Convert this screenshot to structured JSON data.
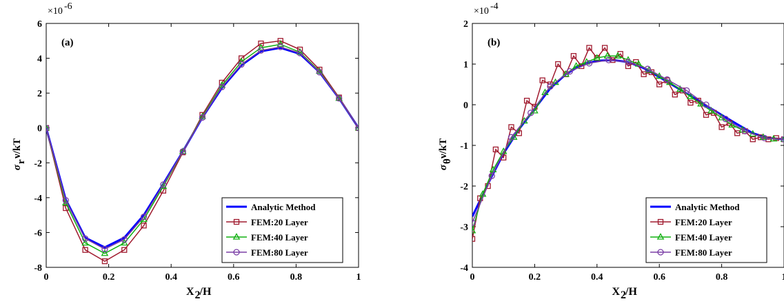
{
  "chart_data": [
    {
      "type": "line",
      "panel_label": "(a)",
      "exponent_base": "×10",
      "exponent_power": "-6",
      "xlabel_main": "X",
      "xlabel_sub": "2",
      "xlabel_rest": "/H",
      "ylabel_main": "σ",
      "ylabel_sub": "r",
      "ylabel_rest": "ν/kT",
      "xlim": [
        0,
        1
      ],
      "ylim": [
        -8,
        6
      ],
      "xticks": [
        0,
        0.2,
        0.4,
        0.6,
        0.8,
        1
      ],
      "xtick_labels": [
        "0",
        "0.2",
        "0.4",
        "0.6",
        "0.8",
        "1"
      ],
      "yticks": [
        -8,
        -6,
        -4,
        -2,
        0,
        2,
        4,
        6
      ],
      "ytick_labels": [
        "-8",
        "-6",
        "-4",
        "-2",
        "0",
        "2",
        "4",
        "6"
      ],
      "legend_position": "bottom-right",
      "series": [
        {
          "name": "Analytic Method",
          "color": "#0000ff",
          "marker": "none",
          "x": [
            0,
            0.0625,
            0.125,
            0.1875,
            0.25,
            0.3125,
            0.375,
            0.4375,
            0.5,
            0.5625,
            0.625,
            0.6875,
            0.75,
            0.8125,
            0.875,
            0.9375,
            1
          ],
          "y": [
            0,
            -4.1,
            -6.3,
            -6.85,
            -6.3,
            -5.0,
            -3.2,
            -1.35,
            0.6,
            2.3,
            3.6,
            4.4,
            4.6,
            4.25,
            3.2,
            1.7,
            0
          ]
        },
        {
          "name": "FEM:20 Layer",
          "color": "#a01a2e",
          "marker": "square",
          "x": [
            0,
            0.0625,
            0.125,
            0.1875,
            0.25,
            0.3125,
            0.375,
            0.4375,
            0.5,
            0.5625,
            0.625,
            0.6875,
            0.75,
            0.8125,
            0.875,
            0.9375,
            1
          ],
          "y": [
            0,
            -4.6,
            -7.0,
            -7.65,
            -7.0,
            -5.6,
            -3.6,
            -1.4,
            0.75,
            2.6,
            4.0,
            4.85,
            5.0,
            4.5,
            3.35,
            1.75,
            0
          ]
        },
        {
          "name": "FEM:40 Layer",
          "color": "#11b011",
          "marker": "triangle",
          "x": [
            0,
            0.0625,
            0.125,
            0.1875,
            0.25,
            0.3125,
            0.375,
            0.4375,
            0.5,
            0.5625,
            0.625,
            0.6875,
            0.75,
            0.8125,
            0.875,
            0.9375,
            1
          ],
          "y": [
            0,
            -4.3,
            -6.6,
            -7.2,
            -6.6,
            -5.25,
            -3.35,
            -1.35,
            0.65,
            2.45,
            3.8,
            4.6,
            4.8,
            4.35,
            3.25,
            1.7,
            0
          ]
        },
        {
          "name": "FEM:80 Layer",
          "color": "#7a3ea6",
          "marker": "circle",
          "x": [
            0,
            0.0625,
            0.125,
            0.1875,
            0.25,
            0.3125,
            0.375,
            0.4375,
            0.5,
            0.5625,
            0.625,
            0.6875,
            0.75,
            0.8125,
            0.875,
            0.9375,
            1
          ],
          "y": [
            0,
            -4.15,
            -6.35,
            -6.95,
            -6.4,
            -5.1,
            -3.25,
            -1.35,
            0.6,
            2.35,
            3.65,
            4.45,
            4.65,
            4.3,
            3.2,
            1.7,
            0
          ]
        }
      ]
    },
    {
      "type": "line",
      "panel_label": "(b)",
      "exponent_base": "×10",
      "exponent_power": "-4",
      "xlabel_main": "X",
      "xlabel_sub": "2",
      "xlabel_rest": "/H",
      "ylabel_main": "σ",
      "ylabel_sub": "θ",
      "ylabel_rest": "ν/kT",
      "xlim": [
        0,
        1
      ],
      "ylim": [
        -4,
        2
      ],
      "xticks": [
        0,
        0.2,
        0.4,
        0.6,
        0.8,
        1
      ],
      "xtick_labels": [
        "0",
        "0.2",
        "0.4",
        "0.6",
        "0.8",
        "1"
      ],
      "yticks": [
        -4,
        -3,
        -2,
        -1,
        0,
        1,
        2
      ],
      "ytick_labels": [
        "-4",
        "-3",
        "-2",
        "-1",
        "0",
        "1",
        "2"
      ],
      "legend_position": "bottom-right",
      "series": [
        {
          "name": "Analytic Method",
          "color": "#0000ff",
          "marker": "none",
          "x": [
            0,
            0.05,
            0.1,
            0.15,
            0.2,
            0.25,
            0.3,
            0.35,
            0.4,
            0.45,
            0.5,
            0.55,
            0.6,
            0.65,
            0.7,
            0.75,
            0.8,
            0.85,
            0.9,
            0.95,
            1
          ],
          "y": [
            -2.75,
            -1.95,
            -1.2,
            -0.6,
            -0.1,
            0.4,
            0.75,
            0.98,
            1.08,
            1.1,
            1.05,
            0.9,
            0.68,
            0.45,
            0.22,
            -0.02,
            -0.25,
            -0.48,
            -0.7,
            -0.82,
            -0.85
          ]
        },
        {
          "name": "FEM:20 Layer",
          "color": "#a01a2e",
          "marker": "square",
          "x": [
            0,
            0.025,
            0.05,
            0.075,
            0.1,
            0.125,
            0.15,
            0.175,
            0.2,
            0.225,
            0.25,
            0.275,
            0.3,
            0.325,
            0.35,
            0.375,
            0.4,
            0.425,
            0.45,
            0.475,
            0.5,
            0.525,
            0.55,
            0.575,
            0.6,
            0.625,
            0.65,
            0.675,
            0.7,
            0.725,
            0.75,
            0.775,
            0.8,
            0.825,
            0.85,
            0.875,
            0.9,
            0.925,
            0.95,
            0.975,
            1
          ],
          "y": [
            -3.3,
            -2.3,
            -2.0,
            -1.1,
            -1.3,
            -0.55,
            -0.7,
            0.1,
            -0.05,
            0.6,
            0.5,
            1.0,
            0.75,
            1.2,
            0.95,
            1.4,
            1.15,
            1.4,
            1.1,
            1.25,
            0.95,
            1.05,
            0.75,
            0.8,
            0.5,
            0.6,
            0.25,
            0.35,
            0.05,
            0.1,
            -0.25,
            -0.2,
            -0.55,
            -0.45,
            -0.7,
            -0.65,
            -0.85,
            -0.8,
            -0.85,
            -0.82,
            -0.85
          ]
        },
        {
          "name": "FEM:40 Layer",
          "color": "#11b011",
          "marker": "triangle",
          "x": [
            0,
            0.0333,
            0.0667,
            0.1,
            0.1333,
            0.1667,
            0.2,
            0.2333,
            0.2667,
            0.3,
            0.3333,
            0.3667,
            0.4,
            0.4333,
            0.4667,
            0.5,
            0.5333,
            0.5667,
            0.6,
            0.6333,
            0.6667,
            0.7,
            0.7333,
            0.7667,
            0.8,
            0.8333,
            0.8667,
            0.9,
            0.9333,
            0.9667,
            1
          ],
          "y": [
            -3.1,
            -2.2,
            -1.6,
            -1.15,
            -0.8,
            -0.4,
            -0.15,
            0.3,
            0.55,
            0.75,
            0.95,
            1.05,
            1.15,
            1.2,
            1.2,
            1.1,
            1.0,
            0.85,
            0.7,
            0.55,
            0.38,
            0.2,
            0.02,
            -0.15,
            -0.32,
            -0.5,
            -0.62,
            -0.72,
            -0.8,
            -0.84,
            -0.85
          ]
        },
        {
          "name": "FEM:80 Layer",
          "color": "#7a3ea6",
          "marker": "circle",
          "x": [
            0,
            0.0625,
            0.125,
            0.1875,
            0.25,
            0.3125,
            0.375,
            0.4375,
            0.5,
            0.5625,
            0.625,
            0.6875,
            0.75,
            0.8125,
            0.875,
            0.9375,
            1
          ],
          "y": [
            -2.9,
            -1.75,
            -0.8,
            -0.2,
            0.45,
            0.82,
            1.02,
            1.1,
            1.05,
            0.88,
            0.62,
            0.35,
            0.0,
            -0.35,
            -0.65,
            -0.82,
            -0.85
          ]
        }
      ]
    }
  ]
}
